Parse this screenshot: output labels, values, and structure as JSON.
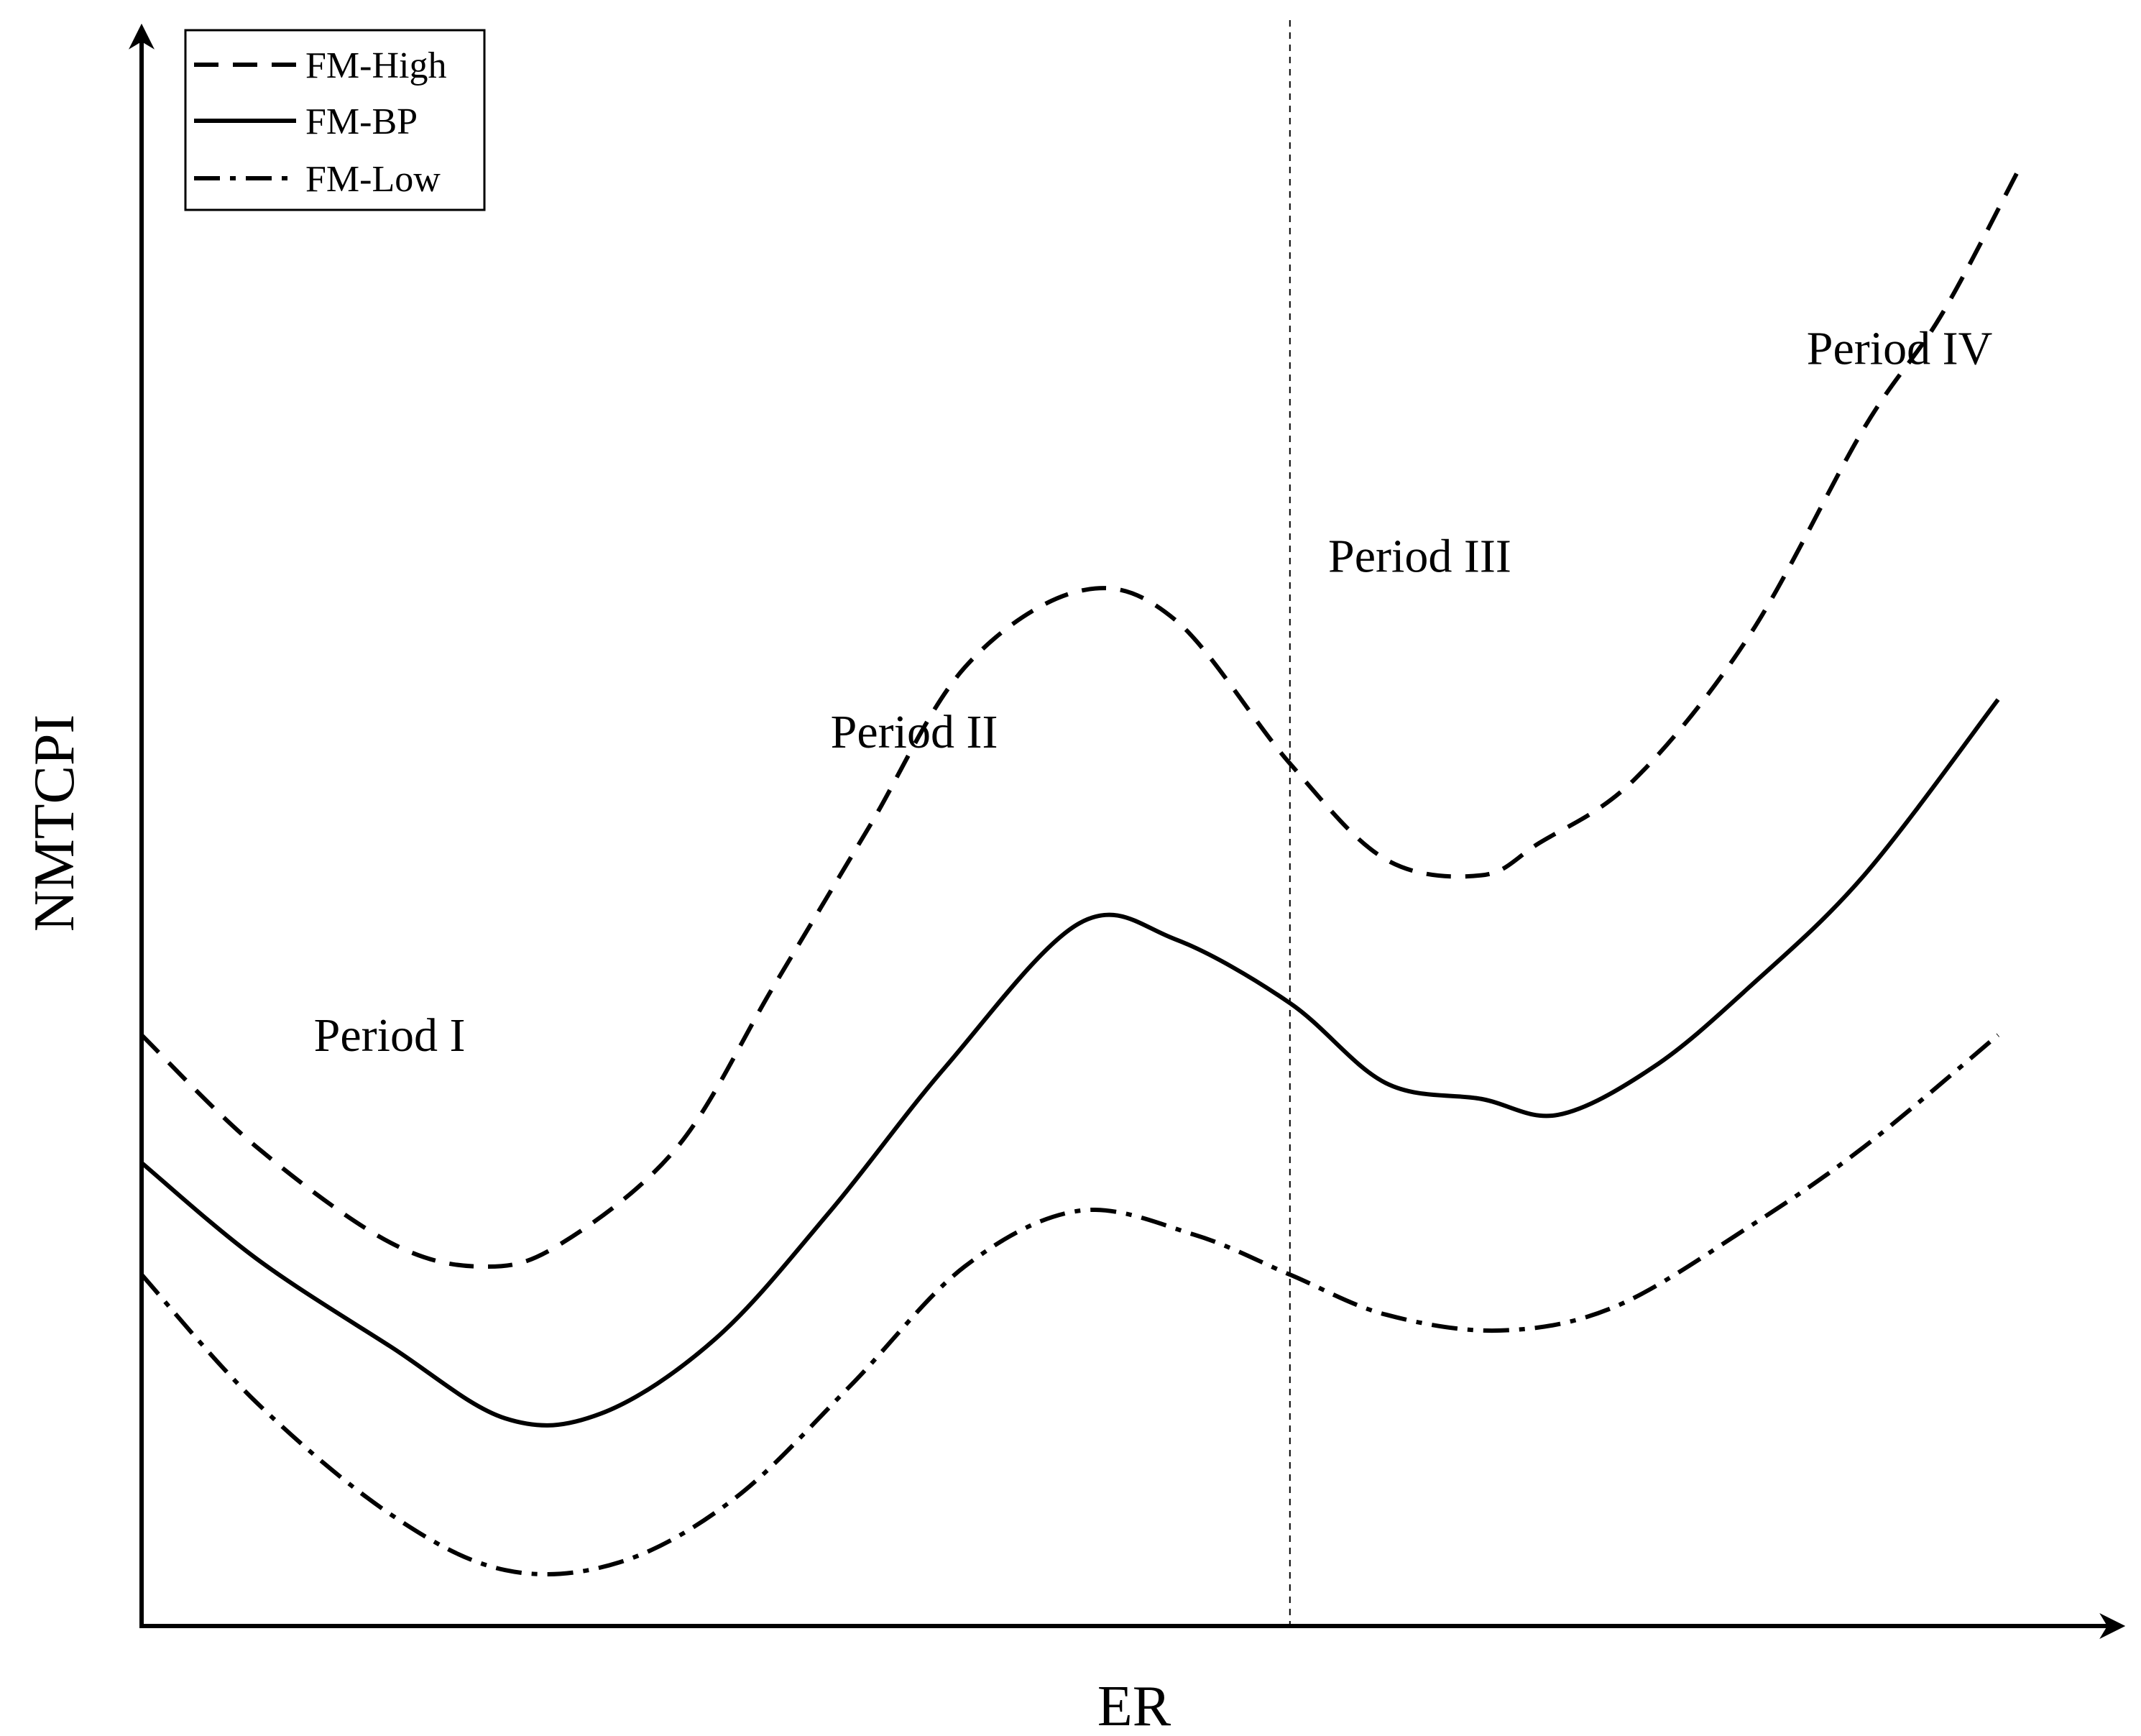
{
  "chart_data": {
    "type": "line",
    "title": "",
    "xlabel": "ER",
    "ylabel": "NMTCPI",
    "xlim": [
      0,
      1
    ],
    "ylim": [
      0,
      1
    ],
    "grid": false,
    "axis_ticks": false,
    "legend": {
      "placement": "top-left",
      "entries": [
        {
          "name": "FM-High",
          "style": "dashed"
        },
        {
          "name": "FM-BP",
          "style": "solid"
        },
        {
          "name": "FM-Low",
          "style": "dashdot"
        }
      ]
    },
    "annotations": [
      {
        "text": "Period I",
        "x": 0.09,
        "y": 0.36
      },
      {
        "text": "Period II",
        "x": 0.36,
        "y": 0.55
      },
      {
        "text": "Period III",
        "x": 0.62,
        "y": 0.66
      },
      {
        "text": "Period IV",
        "x": 0.87,
        "y": 0.79
      }
    ],
    "vertical_reference": {
      "x": 0.6,
      "style": "dotted"
    },
    "series": [
      {
        "name": "FM-High",
        "style": "dashed",
        "x": [
          0,
          0.06,
          0.13,
          0.18,
          0.22,
          0.28,
          0.33,
          0.38,
          0.43,
          0.49,
          0.54,
          0.6,
          0.65,
          0.7,
          0.73,
          0.78,
          0.84,
          0.9,
          0.94,
          0.98
        ],
        "y": [
          0.37,
          0.3,
          0.24,
          0.225,
          0.24,
          0.3,
          0.4,
          0.5,
          0.6,
          0.648,
          0.63,
          0.54,
          0.48,
          0.47,
          0.49,
          0.53,
          0.62,
          0.75,
          0.82,
          0.91
        ]
      },
      {
        "name": "FM-BP",
        "style": "solid",
        "x": [
          0,
          0.06,
          0.13,
          0.19,
          0.24,
          0.3,
          0.36,
          0.42,
          0.49,
          0.54,
          0.6,
          0.65,
          0.7,
          0.74,
          0.79,
          0.84,
          0.9,
          0.97
        ],
        "y": [
          0.29,
          0.23,
          0.175,
          0.13,
          0.133,
          0.18,
          0.26,
          0.35,
          0.44,
          0.43,
          0.39,
          0.34,
          0.33,
          0.32,
          0.35,
          0.4,
          0.47,
          0.58
        ]
      },
      {
        "name": "FM-Low",
        "style": "dashdot",
        "x": [
          0,
          0.06,
          0.13,
          0.19,
          0.25,
          0.31,
          0.37,
          0.43,
          0.49,
          0.55,
          0.6,
          0.65,
          0.71,
          0.77,
          0.84,
          0.9,
          0.97
        ],
        "y": [
          0.22,
          0.14,
          0.07,
          0.035,
          0.04,
          0.08,
          0.15,
          0.225,
          0.26,
          0.245,
          0.22,
          0.195,
          0.185,
          0.2,
          0.25,
          0.3,
          0.37
        ]
      }
    ]
  }
}
